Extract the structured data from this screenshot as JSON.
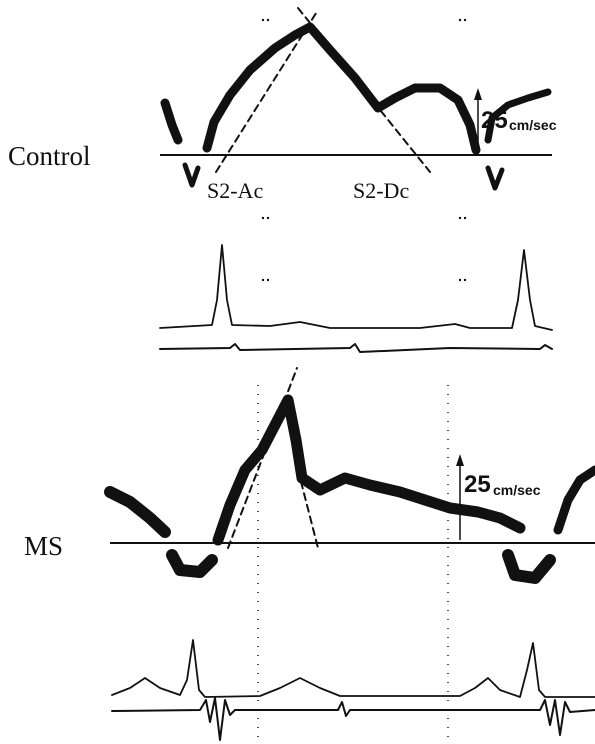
{
  "control": {
    "label": "Control",
    "annotations": [
      "S2-Ac",
      "S2-Dc"
    ],
    "scale_value": "25",
    "scale_unit": "cm/sec"
  },
  "ms": {
    "label": "MS",
    "scale_value": "25",
    "scale_unit": "cm/sec"
  }
}
